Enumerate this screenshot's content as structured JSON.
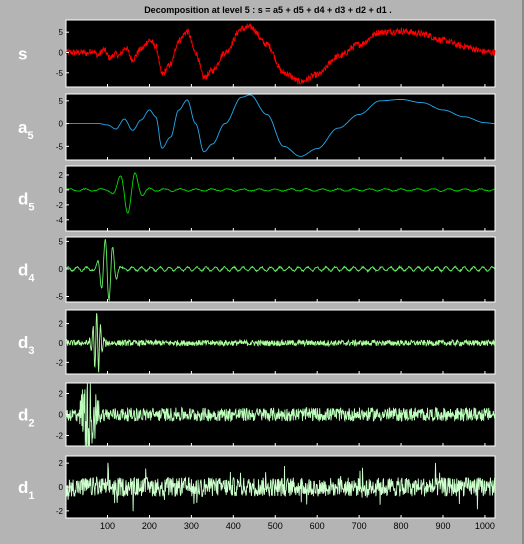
{
  "chart_data": {
    "type": "line",
    "title": "Decomposition at level 5 : s = a5 + d5 + d4 + d3 + d2 + d1 .",
    "xlim": [
      1,
      1024
    ],
    "xticks": [
      "100",
      "200",
      "300",
      "400",
      "500",
      "600",
      "700",
      "800",
      "900",
      "1000"
    ],
    "background": "#000000",
    "grid": false,
    "subplots": [
      {
        "name": "s",
        "label_main": "s",
        "label_sub": "",
        "color": "#ff0000",
        "yticks": [
          "5",
          "0",
          "-5"
        ],
        "ylim": [
          -8.5,
          8
        ]
      },
      {
        "name": "a5",
        "label_main": "a",
        "label_sub": "5",
        "color": "#22aaee",
        "yticks": [
          "5",
          "0",
          "-5"
        ],
        "ylim": [
          -8,
          6.5
        ]
      },
      {
        "name": "d5",
        "label_main": "d",
        "label_sub": "5",
        "color": "#00dd00",
        "yticks": [
          "2",
          "0",
          "-2",
          "-4"
        ],
        "ylim": [
          -5.5,
          3.2
        ]
      },
      {
        "name": "d4",
        "label_main": "d",
        "label_sub": "4",
        "color": "#66ee66",
        "yticks": [
          "5",
          "0",
          "-5"
        ],
        "ylim": [
          -6,
          5.8
        ]
      },
      {
        "name": "d3",
        "label_main": "d",
        "label_sub": "3",
        "color": "#aaff99",
        "yticks": [
          "2",
          "0",
          "-2"
        ],
        "ylim": [
          -3.2,
          3.4
        ]
      },
      {
        "name": "d2",
        "label_main": "d",
        "label_sub": "2",
        "color": "#bbffbb",
        "yticks": [
          "2",
          "0",
          "-2"
        ],
        "ylim": [
          -3.0,
          3.0
        ]
      },
      {
        "name": "d1",
        "label_main": "d",
        "label_sub": "1",
        "color": "#ccffcc",
        "yticks": [
          "2",
          "0",
          "-2"
        ],
        "ylim": [
          -2.6,
          2.6
        ]
      }
    ]
  }
}
